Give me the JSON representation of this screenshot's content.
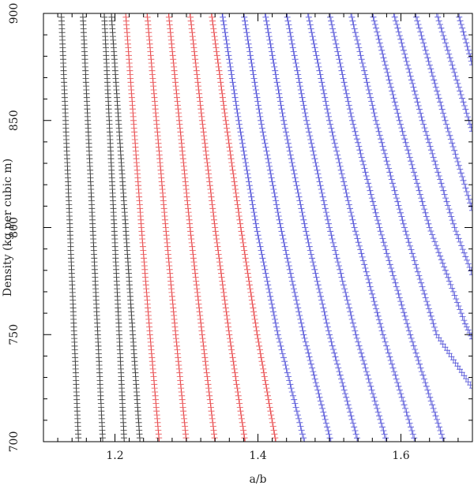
{
  "chart_data": {
    "type": "scatter",
    "title": "",
    "xlabel": "a/b",
    "ylabel": "Density (kg per cubic m)",
    "xlim": [
      1.1,
      1.7
    ],
    "ylim": [
      700,
      900
    ],
    "xticks": [
      1.2,
      1.4,
      1.6
    ],
    "yticks": [
      700,
      750,
      800,
      850,
      900
    ],
    "xtick_labels": [
      "1.2",
      "1.4",
      "1.6"
    ],
    "ytick_labels": [
      "700",
      "750",
      "800",
      "850",
      "900"
    ],
    "marker": "+",
    "grid": false,
    "legend": "none",
    "series": [
      {
        "color": "#333333",
        "curves": [
          {
            "points": [
              [
                1.125,
                900
              ],
              [
                1.131,
                850
              ],
              [
                1.137,
                800
              ],
              [
                1.143,
                750
              ],
              [
                1.149,
                700
              ]
            ]
          },
          {
            "points": [
              [
                1.155,
                900
              ],
              [
                1.162,
                850
              ],
              [
                1.169,
                800
              ],
              [
                1.176,
                750
              ],
              [
                1.183,
                700
              ]
            ]
          },
          {
            "points": [
              [
                1.185,
                900
              ],
              [
                1.192,
                850
              ],
              [
                1.199,
                800
              ],
              [
                1.206,
                750
              ],
              [
                1.213,
                700
              ]
            ]
          },
          {
            "points": [
              [
                1.195,
                900
              ],
              [
                1.205,
                850
              ],
              [
                1.215,
                800
              ],
              [
                1.225,
                750
              ],
              [
                1.235,
                700
              ]
            ]
          }
        ]
      },
      {
        "color": "#e8474a",
        "curves": [
          {
            "points": [
              [
                1.215,
                900
              ],
              [
                1.226,
                850
              ],
              [
                1.237,
                800
              ],
              [
                1.249,
                750
              ],
              [
                1.262,
                700
              ]
            ]
          },
          {
            "points": [
              [
                1.245,
                900
              ],
              [
                1.258,
                850
              ],
              [
                1.271,
                800
              ],
              [
                1.285,
                750
              ],
              [
                1.3,
                700
              ]
            ]
          },
          {
            "points": [
              [
                1.275,
                900
              ],
              [
                1.29,
                850
              ],
              [
                1.305,
                800
              ],
              [
                1.322,
                750
              ],
              [
                1.34,
                700
              ]
            ]
          },
          {
            "points": [
              [
                1.305,
                900
              ],
              [
                1.322,
                850
              ],
              [
                1.34,
                800
              ],
              [
                1.36,
                750
              ],
              [
                1.382,
                700
              ]
            ]
          },
          {
            "points": [
              [
                1.335,
                900
              ],
              [
                1.355,
                850
              ],
              [
                1.376,
                800
              ],
              [
                1.399,
                750
              ],
              [
                1.425,
                700
              ]
            ]
          }
        ]
      },
      {
        "color": "#4a4ad6",
        "curves": [
          {
            "points": [
              [
                1.35,
                900
              ],
              [
                1.373,
                850
              ],
              [
                1.398,
                800
              ],
              [
                1.428,
                750
              ],
              [
                1.465,
                700
              ]
            ]
          },
          {
            "points": [
              [
                1.38,
                900
              ],
              [
                1.404,
                850
              ],
              [
                1.432,
                800
              ],
              [
                1.464,
                750
              ],
              [
                1.502,
                700
              ]
            ]
          },
          {
            "points": [
              [
                1.41,
                900
              ],
              [
                1.436,
                850
              ],
              [
                1.466,
                800
              ],
              [
                1.5,
                750
              ],
              [
                1.54,
                700
              ]
            ]
          },
          {
            "points": [
              [
                1.44,
                900
              ],
              [
                1.468,
                850
              ],
              [
                1.5,
                800
              ],
              [
                1.537,
                750
              ],
              [
                1.58,
                700
              ]
            ]
          },
          {
            "points": [
              [
                1.47,
                900
              ],
              [
                1.5,
                850
              ],
              [
                1.535,
                800
              ],
              [
                1.575,
                750
              ],
              [
                1.62,
                700
              ]
            ]
          },
          {
            "points": [
              [
                1.5,
                900
              ],
              [
                1.532,
                850
              ],
              [
                1.57,
                800
              ],
              [
                1.613,
                750
              ],
              [
                1.66,
                700
              ]
            ]
          },
          {
            "points": [
              [
                1.53,
                900
              ],
              [
                1.565,
                850
              ],
              [
                1.605,
                800
              ],
              [
                1.65,
                750
              ],
              [
                1.7,
                725
              ]
            ]
          },
          {
            "points": [
              [
                1.56,
                900
              ],
              [
                1.598,
                850
              ],
              [
                1.64,
                800
              ],
              [
                1.69,
                755
              ],
              [
                1.7,
                748
              ]
            ]
          },
          {
            "points": [
              [
                1.59,
                900
              ],
              [
                1.63,
                850
              ],
              [
                1.675,
                800
              ],
              [
                1.7,
                778
              ]
            ]
          },
          {
            "points": [
              [
                1.62,
                900
              ],
              [
                1.662,
                850
              ],
              [
                1.7,
                808
              ]
            ]
          },
          {
            "points": [
              [
                1.65,
                900
              ],
              [
                1.695,
                850
              ],
              [
                1.7,
                845
              ]
            ]
          },
          {
            "points": [
              [
                1.68,
                900
              ],
              [
                1.7,
                876
              ]
            ]
          }
        ]
      }
    ]
  }
}
